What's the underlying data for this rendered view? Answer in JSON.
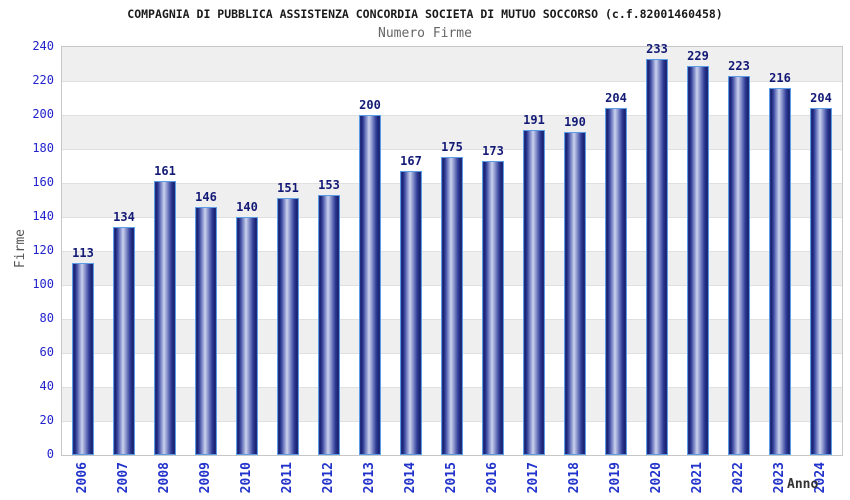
{
  "chart_data": {
    "type": "bar",
    "title": "COMPAGNIA DI PUBBLICA ASSISTENZA CONCORDIA SOCIETA DI MUTUO SOCCORSO (c.f.82001460458)",
    "subtitle": "Numero Firme",
    "xlabel": "Anno",
    "ylabel": "Firme",
    "categories": [
      "2006",
      "2007",
      "2008",
      "2009",
      "2010",
      "2011",
      "2012",
      "2013",
      "2014",
      "2015",
      "2016",
      "2017",
      "2018",
      "2019",
      "2020",
      "2021",
      "2022",
      "2023",
      "2024"
    ],
    "values": [
      113,
      134,
      161,
      146,
      140,
      151,
      153,
      200,
      167,
      175,
      173,
      191,
      190,
      204,
      233,
      229,
      223,
      216,
      204
    ],
    "ylim": [
      0,
      240
    ],
    "yticks": [
      0,
      20,
      40,
      60,
      80,
      100,
      120,
      140,
      160,
      180,
      200,
      220,
      240
    ],
    "grid": "alternating-horizontal-bands",
    "legend_position": "none",
    "colors": {
      "band_gray": "#efefef",
      "band_white": "#ffffff",
      "gridline": "#e0e0e0",
      "plot_border": "#c6c6c6",
      "bar_edge_dark": "#161e6a",
      "bar_mid": "#32409a",
      "bar_light": "#9aa4d6",
      "bar_lightest": "#ccd2ec",
      "bar_border": "#5b9ce6",
      "ytick_label": "#2222cc",
      "xtick_label": "#2233cc",
      "value_label": "#131a75",
      "title_color": "#1a1a1a",
      "subtitle_color": "#666666",
      "ylabel_color": "#555555",
      "xlabel_color": "#333333"
    }
  }
}
